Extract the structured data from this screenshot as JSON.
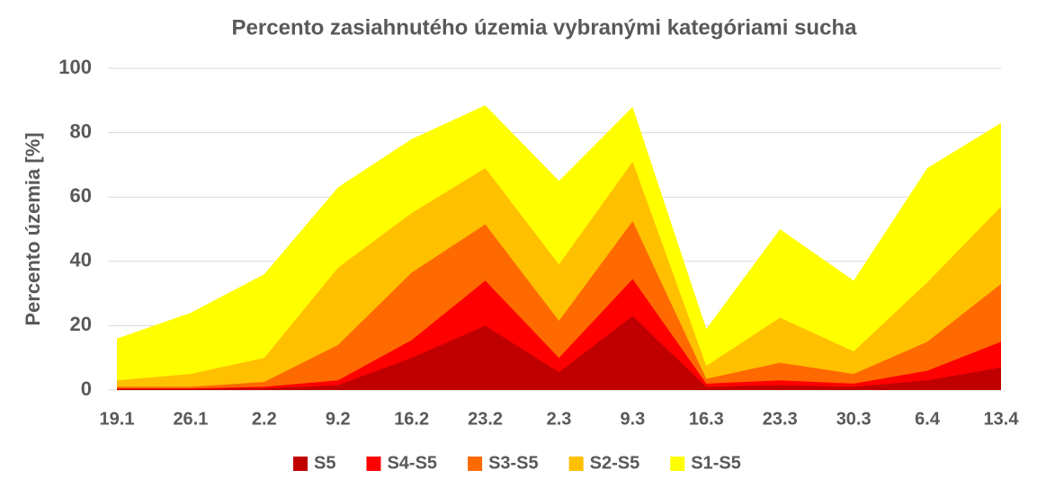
{
  "chart_data": {
    "type": "area",
    "title": "Percento zasiahnutého územia vybranými kategóriami sucha",
    "y_label": "Percento územia  [%]",
    "categories": [
      "19.1",
      "26.1",
      "2.2",
      "9.2",
      "16.2",
      "23.2",
      "2.3",
      "9.3",
      "16.3",
      "23.3",
      "30.3",
      "6.4",
      "13.4"
    ],
    "series": [
      {
        "name": "S5",
        "color": "#c00000",
        "values": [
          0.3,
          0.3,
          0.5,
          1.5,
          10,
          20,
          5.5,
          23,
          1,
          1.5,
          1,
          3,
          7
        ]
      },
      {
        "name": "S4-S5",
        "color": "#ff0000",
        "values": [
          0.5,
          0.5,
          1,
          3,
          15.5,
          34,
          10,
          34.5,
          2,
          3,
          2,
          6,
          15
        ]
      },
      {
        "name": "S3-S5",
        "color": "#ff6a00",
        "values": [
          1,
          1,
          2.5,
          14,
          36.5,
          51.5,
          21.5,
          52.5,
          3.5,
          8.5,
          5,
          15,
          33
        ]
      },
      {
        "name": "S2-S5",
        "color": "#ffc000",
        "values": [
          3,
          5,
          10,
          38,
          55,
          69,
          39,
          71,
          7.5,
          22.5,
          12,
          33.5,
          57
        ]
      },
      {
        "name": "S1-S5",
        "color": "#ffff00",
        "values": [
          16,
          24,
          36,
          63,
          78,
          88.5,
          65,
          88,
          19,
          50,
          34,
          69,
          83
        ]
      }
    ],
    "ylim": [
      0,
      100
    ],
    "yticks": [
      0,
      20,
      40,
      60,
      80,
      100
    ],
    "grid": true,
    "legend": "bottom"
  }
}
